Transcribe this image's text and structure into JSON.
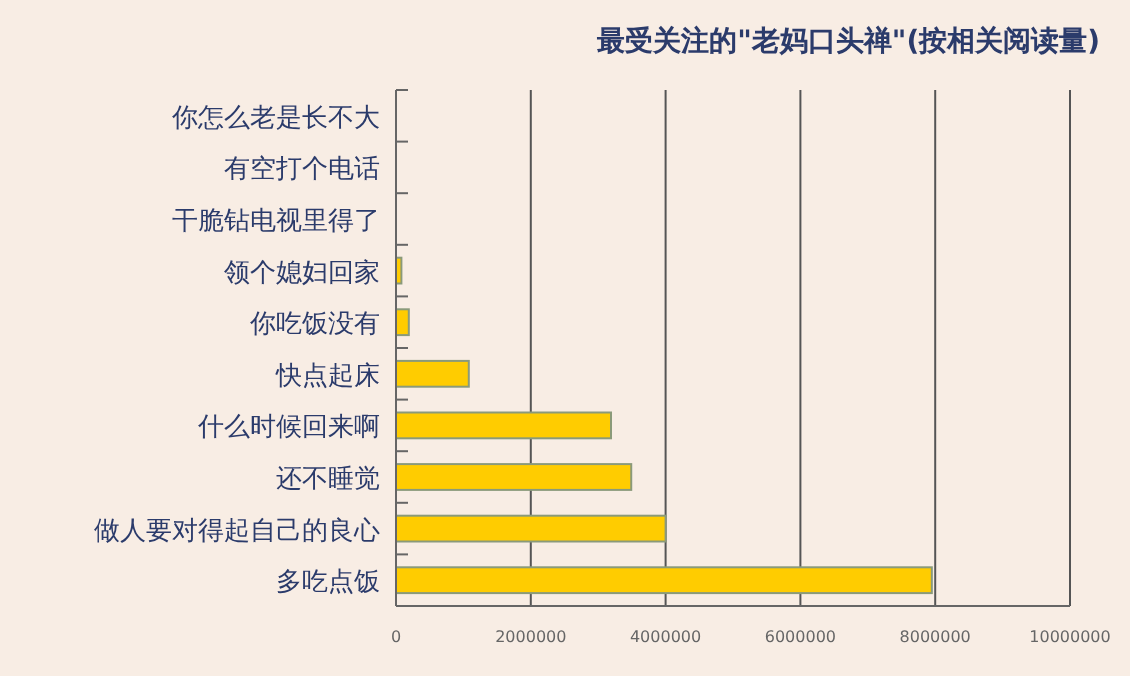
{
  "chart_data": {
    "type": "bar",
    "orientation": "horizontal",
    "title": "最受关注的\"老妈口头禅\"(按相关阅读量)",
    "categories": [
      "你怎么老是长不大",
      "有空打个电话",
      "干脆钻电视里得了",
      "领个媳妇回家",
      "你吃饭没有",
      "快点起床",
      "什么时候回来啊",
      "还不睡觉",
      "做人要对得起自己的良心",
      "多吃点饭"
    ],
    "values": [
      0,
      0,
      0,
      80000,
      190000,
      1080000,
      3190000,
      3490000,
      4000000,
      7950000
    ],
    "color": "#ffcc00",
    "xlim": [
      0,
      10000000
    ],
    "xticks": [
      0,
      2000000,
      4000000,
      6000000,
      8000000,
      10000000
    ],
    "grid": "x"
  }
}
